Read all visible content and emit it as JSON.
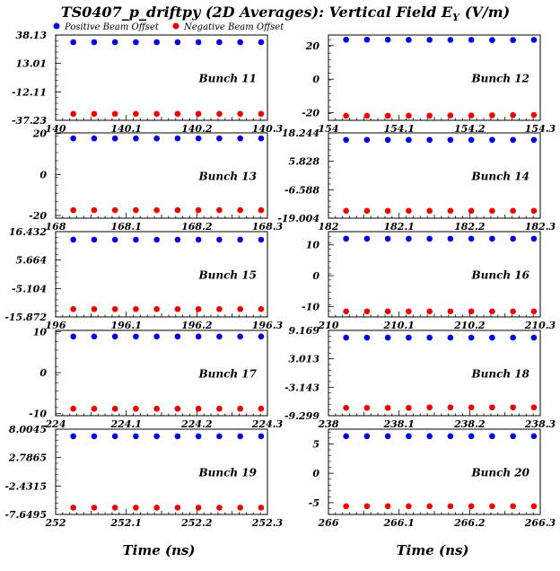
{
  "title": "TS0407_p_driftpy (2D Averages): Vertical Field E",
  "title_sub": "Y",
  "title_units": "(V/m)",
  "legend": [
    {
      "label": "Positive Beam Offset",
      "color": "#0000dd"
    },
    {
      "label": "Negative Beam Offset",
      "color": "#ee0000"
    }
  ],
  "xlabels": [
    "Time (ns)",
    "Time (ns)"
  ],
  "chart_data": [
    {
      "type": "scatter",
      "label": "Bunch 11",
      "xlim": [
        140,
        140.3
      ],
      "xticks": [
        "140",
        "140.1",
        "140.2",
        "140.3"
      ],
      "ylim": [
        -37.23,
        38.13
      ],
      "yticks": [
        "38.13",
        "13.01",
        "-12.11",
        "-37.23"
      ],
      "series": [
        {
          "name": "Positive Beam Offset",
          "values": [
            31.8,
            31.8,
            31.8,
            31.8,
            31.8,
            31.8,
            31.8,
            31.8,
            31.8,
            31.8
          ]
        },
        {
          "name": "Negative Beam Offset",
          "values": [
            -31.5,
            -31.5,
            -31.5,
            -31.5,
            -31.5,
            -31.5,
            -31.5,
            -31.5,
            -31.5,
            -31.5
          ]
        }
      ]
    },
    {
      "type": "scatter",
      "label": "Bunch 12",
      "xlim": [
        154,
        154.3
      ],
      "xticks": [
        "154",
        "154.1",
        "154.2",
        "154.3"
      ],
      "ylim": [
        -24.5,
        26.3
      ],
      "yticks": [
        "20",
        "0",
        "-20"
      ],
      "series": [
        {
          "name": "Positive Beam Offset",
          "values": [
            23.5,
            23.5,
            23.5,
            23.4,
            23.4,
            23.4,
            23.4,
            23.3,
            23.3,
            23.4
          ]
        },
        {
          "name": "Negative Beam Offset",
          "values": [
            -21.8,
            -21.8,
            -21.8,
            -21.7,
            -21.7,
            -21.6,
            -21.6,
            -21.5,
            -21.4,
            -21.3
          ]
        }
      ]
    },
    {
      "type": "scatter",
      "label": "Bunch 13",
      "xlim": [
        168,
        168.3
      ],
      "xticks": [
        "168",
        "168.1",
        "168.2",
        "168.3"
      ],
      "ylim": [
        -21.3,
        20.3
      ],
      "yticks": [
        "20",
        "0",
        "-20"
      ],
      "series": [
        {
          "name": "Positive Beam Offset",
          "values": [
            17.6,
            17.6,
            17.6,
            17.6,
            17.6,
            17.6,
            17.6,
            17.6,
            17.6,
            17.6
          ]
        },
        {
          "name": "Negative Beam Offset",
          "values": [
            -17.4,
            -17.4,
            -17.4,
            -17.4,
            -17.4,
            -17.4,
            -17.4,
            -17.4,
            -17.4,
            -17.4
          ]
        }
      ]
    },
    {
      "type": "scatter",
      "label": "Bunch 14",
      "xlim": [
        182,
        182.3
      ],
      "xticks": [
        "182",
        "182.1",
        "182.2",
        "182.3"
      ],
      "ylim": [
        -19.004,
        18.244
      ],
      "yticks": [
        "18.244",
        "5.828",
        "-6.588",
        "-19.004"
      ],
      "series": [
        {
          "name": "Positive Beam Offset",
          "values": [
            15.2,
            15.2,
            15.2,
            15.2,
            15.2,
            15.2,
            15.2,
            15.2,
            15.2,
            15.2
          ]
        },
        {
          "name": "Negative Beam Offset",
          "values": [
            -15.8,
            -15.8,
            -15.8,
            -15.8,
            -15.8,
            -15.8,
            -15.8,
            -15.8,
            -15.8,
            -15.8
          ]
        }
      ]
    },
    {
      "type": "scatter",
      "label": "Bunch 15",
      "xlim": [
        196,
        196.3
      ],
      "xticks": [
        "196",
        "196.1",
        "196.2",
        "196.3"
      ],
      "ylim": [
        -15.872,
        16.432
      ],
      "yticks": [
        "16.432",
        "5.664",
        "-5.104",
        "-15.872"
      ],
      "series": [
        {
          "name": "Positive Beam Offset",
          "values": [
            13.4,
            13.4,
            13.4,
            13.4,
            13.4,
            13.4,
            13.4,
            13.4,
            13.4,
            13.4
          ]
        },
        {
          "name": "Negative Beam Offset",
          "values": [
            -12.9,
            -12.9,
            -12.9,
            -12.9,
            -12.9,
            -12.9,
            -12.9,
            -12.9,
            -12.9,
            -12.9
          ]
        }
      ]
    },
    {
      "type": "scatter",
      "label": "Bunch 16",
      "xlim": [
        210,
        210.3
      ],
      "xticks": [
        "210",
        "210.1",
        "210.2",
        "210.3"
      ],
      "ylim": [
        -13.4,
        14.3
      ],
      "yticks": [
        "10",
        "0",
        "-10"
      ],
      "series": [
        {
          "name": "Positive Beam Offset",
          "values": [
            12.0,
            12.0,
            12.0,
            12.0,
            12.0,
            12.0,
            12.0,
            12.0,
            12.0,
            12.0
          ]
        },
        {
          "name": "Negative Beam Offset",
          "values": [
            -11.6,
            -11.6,
            -11.6,
            -11.6,
            -11.6,
            -11.6,
            -11.6,
            -11.6,
            -11.6,
            -11.6
          ]
        }
      ]
    },
    {
      "type": "scatter",
      "label": "Bunch 17",
      "xlim": [
        224,
        224.3
      ],
      "xticks": [
        "224",
        "224.1",
        "224.2",
        "224.3"
      ],
      "ylim": [
        -10.5,
        10.3
      ],
      "yticks": [
        "10",
        "0",
        "-10"
      ],
      "series": [
        {
          "name": "Positive Beam Offset",
          "values": [
            8.8,
            8.8,
            8.8,
            8.8,
            8.8,
            8.8,
            8.8,
            8.8,
            8.8,
            8.8
          ]
        },
        {
          "name": "Negative Beam Offset",
          "values": [
            -8.8,
            -8.8,
            -8.8,
            -8.8,
            -8.8,
            -8.8,
            -8.8,
            -8.8,
            -8.8,
            -8.8
          ]
        }
      ]
    },
    {
      "type": "scatter",
      "label": "Bunch 18",
      "xlim": [
        238,
        238.3
      ],
      "xticks": [
        "238",
        "238.1",
        "238.2",
        "238.3"
      ],
      "ylim": [
        -9.299,
        9.169
      ],
      "yticks": [
        "9.169",
        "3.013",
        "-3.143",
        "-9.299"
      ],
      "series": [
        {
          "name": "Positive Beam Offset",
          "values": [
            7.6,
            7.6,
            7.6,
            7.6,
            7.6,
            7.6,
            7.6,
            7.6,
            7.6,
            7.6
          ]
        },
        {
          "name": "Negative Beam Offset",
          "values": [
            -7.6,
            -7.6,
            -7.6,
            -7.6,
            -7.5,
            -7.5,
            -7.5,
            -7.5,
            -7.5,
            -7.5
          ]
        }
      ]
    },
    {
      "type": "scatter",
      "label": "Bunch 19",
      "xlim": [
        252,
        252.3
      ],
      "xticks": [
        "252",
        "252.1",
        "252.2",
        "252.3"
      ],
      "ylim": [
        -7.6495,
        8.0045
      ],
      "yticks": [
        "8.0045",
        "2.7865",
        "-2.4315",
        "-7.6495"
      ],
      "series": [
        {
          "name": "Positive Beam Offset",
          "values": [
            6.7,
            6.7,
            6.7,
            6.7,
            6.7,
            6.7,
            6.7,
            6.7,
            6.7,
            6.7
          ]
        },
        {
          "name": "Negative Beam Offset",
          "values": [
            -6.4,
            -6.4,
            -6.4,
            -6.4,
            -6.4,
            -6.4,
            -6.4,
            -6.4,
            -6.4,
            -6.4
          ]
        }
      ]
    },
    {
      "type": "scatter",
      "label": "Bunch 20",
      "xlim": [
        266,
        266.3
      ],
      "xticks": [
        "266",
        "266.1",
        "266.2",
        "266.3"
      ],
      "ylim": [
        -7.0,
        7.5
      ],
      "yticks": [
        "5",
        "0",
        "-5"
      ],
      "series": [
        {
          "name": "Positive Beam Offset",
          "values": [
            6.3,
            6.3,
            6.3,
            6.3,
            6.3,
            6.3,
            6.3,
            6.3,
            6.3,
            6.3
          ]
        },
        {
          "name": "Negative Beam Offset",
          "values": [
            -5.6,
            -5.6,
            -5.6,
            -5.6,
            -5.6,
            -5.6,
            -5.6,
            -5.6,
            -5.6,
            -5.6
          ]
        }
      ]
    }
  ]
}
